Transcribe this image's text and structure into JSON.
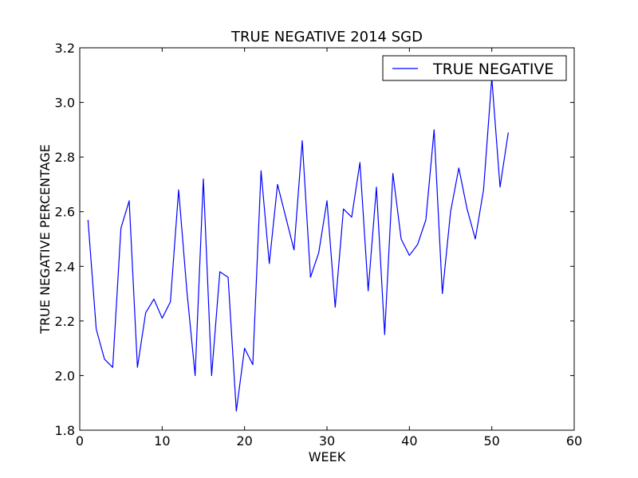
{
  "chart_data": {
    "type": "line",
    "title": "TRUE NEGATIVE 2014 SGD",
    "xlabel": "WEEK",
    "ylabel": "TRUE NEGATIVE PERCENTAGE",
    "xlim": [
      0,
      60
    ],
    "ylim": [
      1.8,
      3.2
    ],
    "xticks": [
      0,
      10,
      20,
      30,
      40,
      50,
      60
    ],
    "yticks": [
      1.8,
      2.0,
      2.2,
      2.4,
      2.6,
      2.8,
      3.0,
      3.2
    ],
    "xtick_labels": [
      "0",
      "10",
      "20",
      "30",
      "40",
      "50",
      "60"
    ],
    "ytick_labels": [
      "1.8",
      "2.0",
      "2.2",
      "2.4",
      "2.6",
      "2.8",
      "3.0",
      "3.2"
    ],
    "grid": false,
    "legend": {
      "position": "top-right",
      "entries": [
        "TRUE NEGATIVE"
      ]
    },
    "series": [
      {
        "name": "TRUE NEGATIVE",
        "color": "#0000ff",
        "x": [
          1,
          2,
          3,
          4,
          5,
          6,
          7,
          8,
          9,
          10,
          11,
          12,
          13,
          14,
          15,
          16,
          17,
          18,
          19,
          20,
          21,
          22,
          23,
          24,
          25,
          26,
          27,
          28,
          29,
          30,
          31,
          32,
          33,
          34,
          35,
          36,
          37,
          38,
          39,
          40,
          41,
          42,
          43,
          44,
          45,
          46,
          47,
          48,
          49,
          50,
          51,
          52
        ],
        "y": [
          2.57,
          2.17,
          2.06,
          2.03,
          2.54,
          2.64,
          2.03,
          2.23,
          2.28,
          2.21,
          2.27,
          2.68,
          2.31,
          2.0,
          2.72,
          2.0,
          2.38,
          2.36,
          1.87,
          2.1,
          2.04,
          2.75,
          2.41,
          2.7,
          2.58,
          2.46,
          2.86,
          2.36,
          2.45,
          2.64,
          2.25,
          2.61,
          2.58,
          2.78,
          2.31,
          2.69,
          2.15,
          2.74,
          2.5,
          2.44,
          2.48,
          2.57,
          2.9,
          2.3,
          2.6,
          2.76,
          2.61,
          2.5,
          2.68,
          3.09,
          2.69,
          2.89
        ]
      }
    ]
  }
}
